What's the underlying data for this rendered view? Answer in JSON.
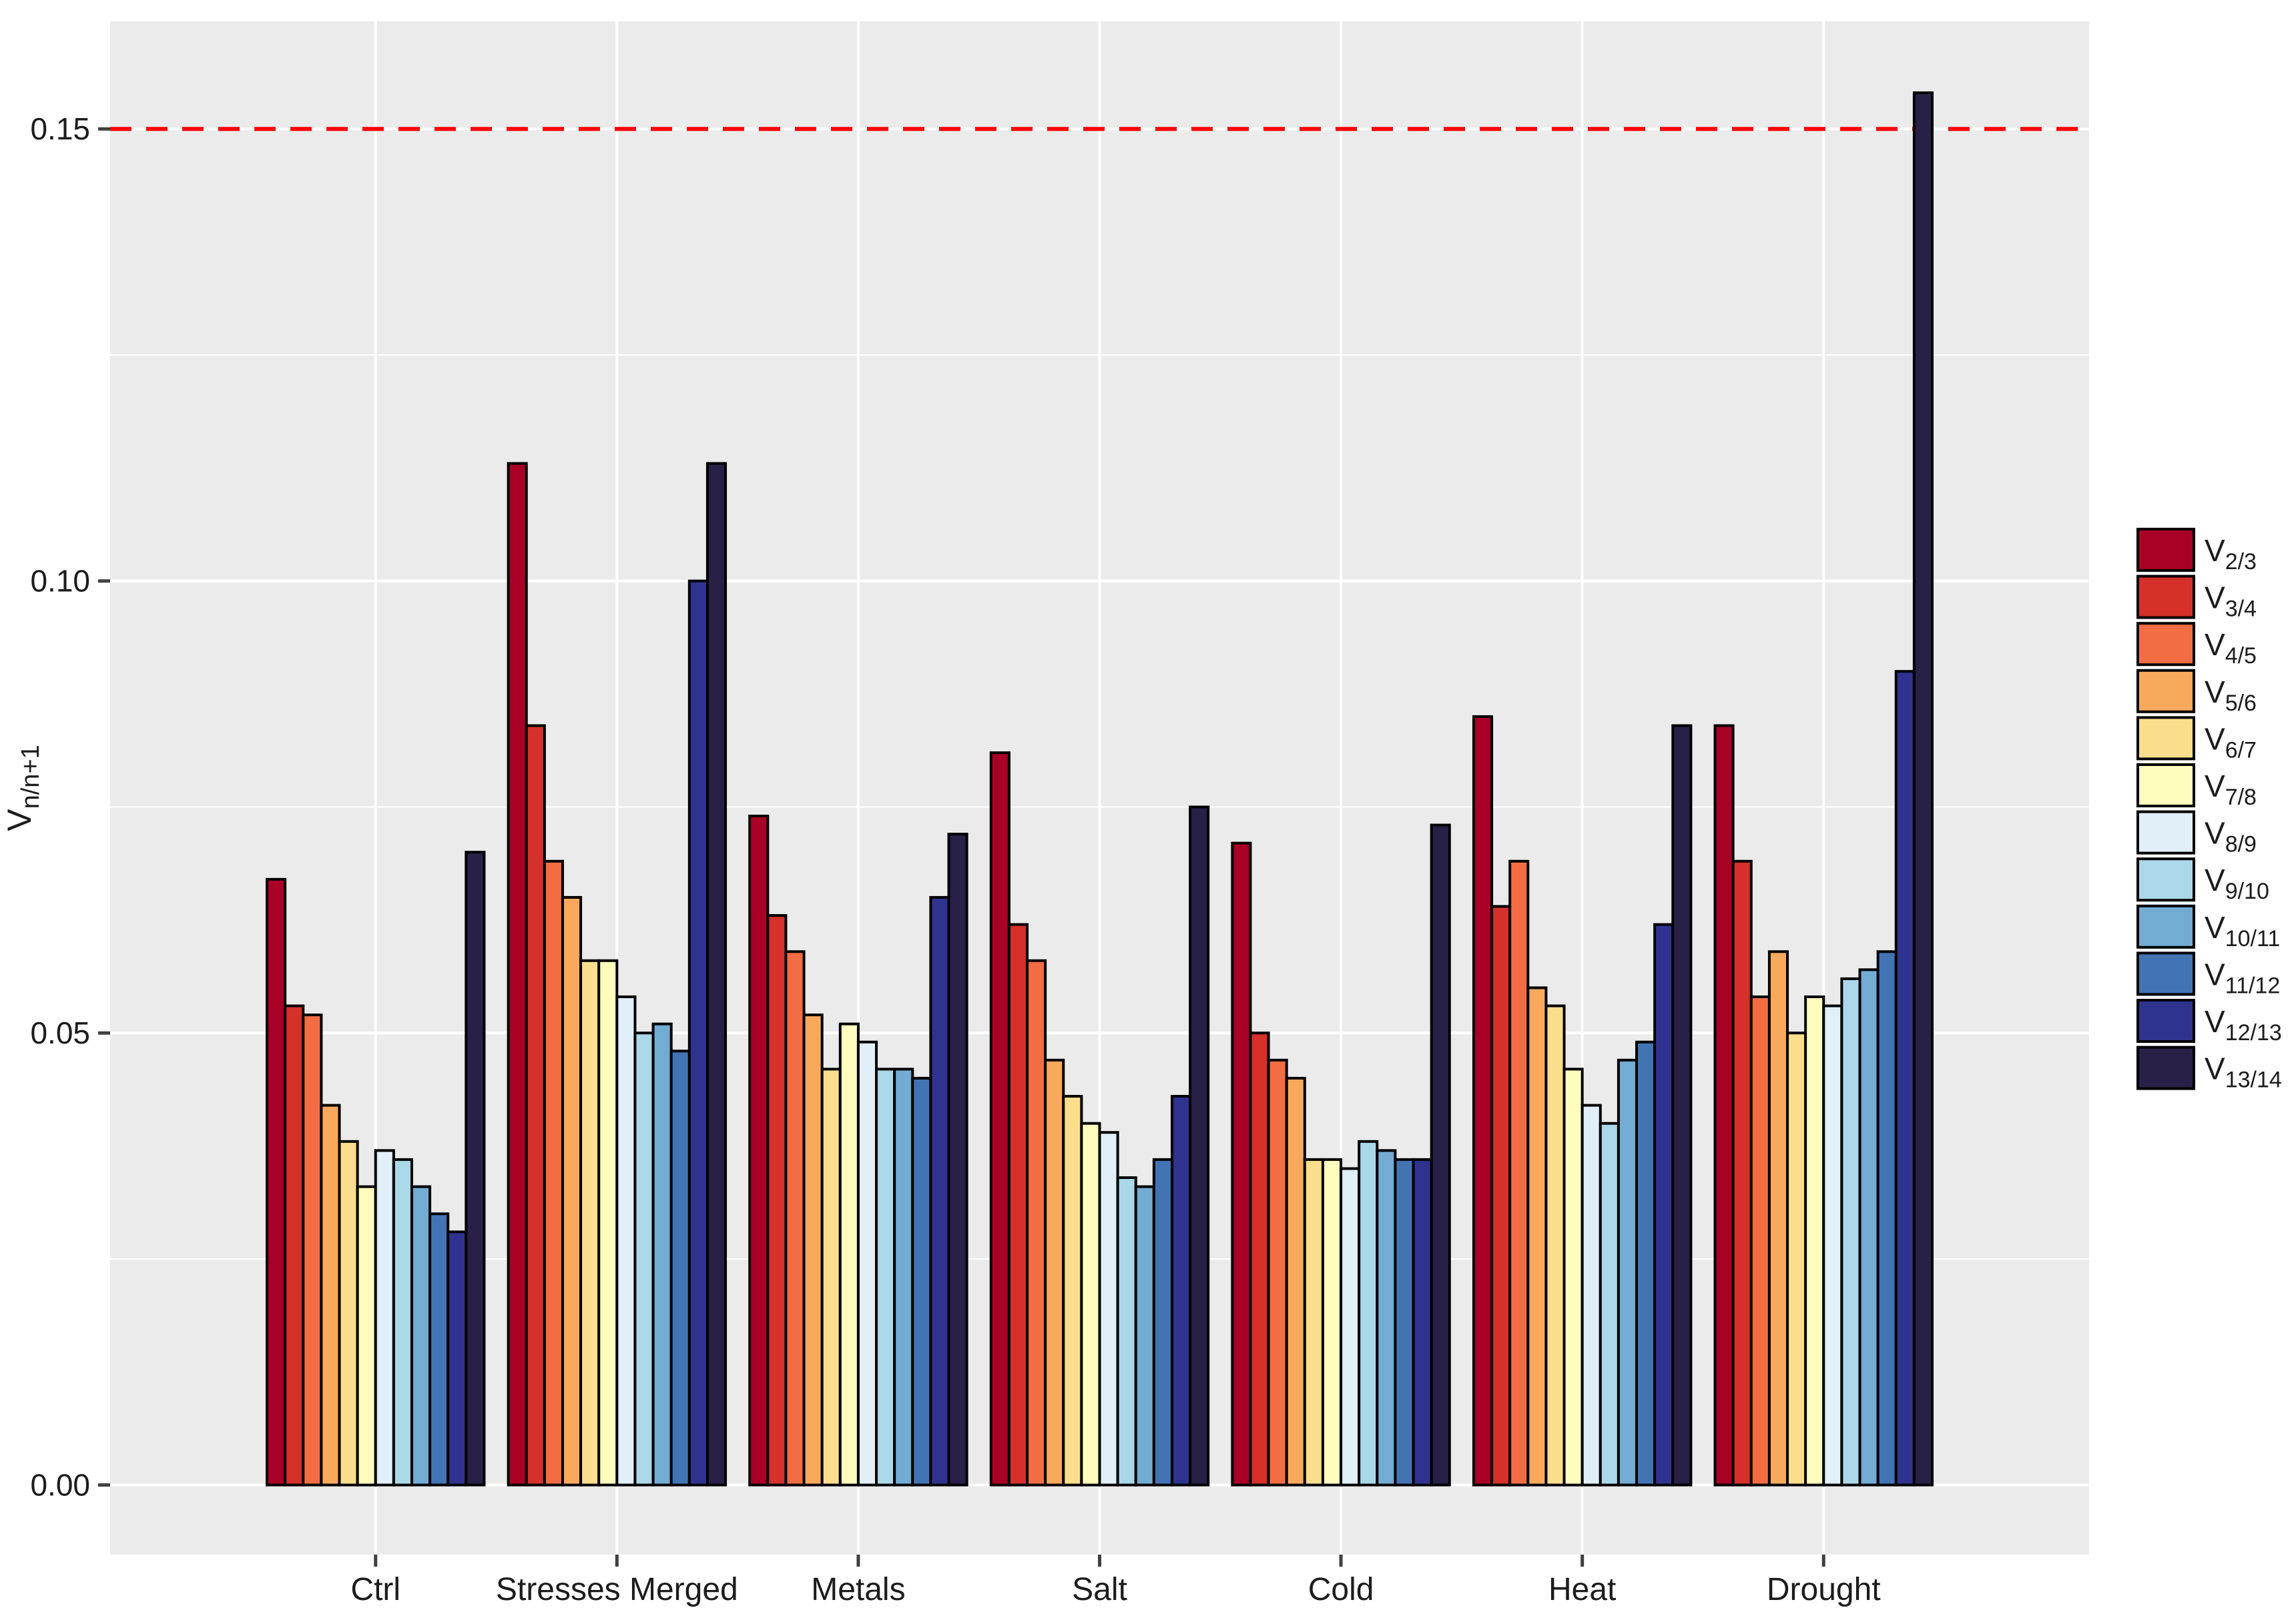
{
  "chart_data": {
    "type": "bar",
    "title": "",
    "xlabel": "",
    "ylabel": {
      "base": "V",
      "sub": "n/n+1"
    },
    "categories": [
      "Ctrl",
      "Stresses Merged",
      "Metals",
      "Salt",
      "Cold",
      "Heat",
      "Drought"
    ],
    "series": [
      {
        "base": "V",
        "sub": "2/3",
        "color": "#A90026",
        "values": [
          0.067,
          0.113,
          0.074,
          0.081,
          0.071,
          0.085,
          0.084
        ]
      },
      {
        "base": "V",
        "sub": "3/4",
        "color": "#D5302A",
        "values": [
          0.053,
          0.084,
          0.063,
          0.062,
          0.05,
          0.064,
          0.069
        ]
      },
      {
        "base": "V",
        "sub": "4/5",
        "color": "#F26D43",
        "values": [
          0.052,
          0.069,
          0.059,
          0.058,
          0.047,
          0.069,
          0.054
        ]
      },
      {
        "base": "V",
        "sub": "5/6",
        "color": "#F8A95C",
        "values": [
          0.042,
          0.065,
          0.052,
          0.047,
          0.045,
          0.055,
          0.059
        ]
      },
      {
        "base": "V",
        "sub": "6/7",
        "color": "#FBDE8B",
        "values": [
          0.038,
          0.058,
          0.046,
          0.043,
          0.036,
          0.053,
          0.05
        ]
      },
      {
        "base": "V",
        "sub": "7/8",
        "color": "#FEFDBE",
        "values": [
          0.033,
          0.058,
          0.051,
          0.04,
          0.036,
          0.046,
          0.054
        ]
      },
      {
        "base": "V",
        "sub": "8/9",
        "color": "#E1EFF8",
        "values": [
          0.037,
          0.054,
          0.049,
          0.039,
          0.035,
          0.042,
          0.053
        ]
      },
      {
        "base": "V",
        "sub": "9/10",
        "color": "#ABD8E8",
        "values": [
          0.036,
          0.05,
          0.046,
          0.034,
          0.038,
          0.04,
          0.056
        ]
      },
      {
        "base": "V",
        "sub": "10/11",
        "color": "#73ACD3",
        "values": [
          0.033,
          0.051,
          0.046,
          0.033,
          0.037,
          0.047,
          0.057
        ]
      },
      {
        "base": "V",
        "sub": "11/12",
        "color": "#4274B4",
        "values": [
          0.03,
          0.048,
          0.045,
          0.036,
          0.036,
          0.049,
          0.059
        ]
      },
      {
        "base": "V",
        "sub": "12/13",
        "color": "#2F338F",
        "values": [
          0.028,
          0.1,
          0.065,
          0.043,
          0.036,
          0.062,
          0.09
        ]
      },
      {
        "base": "V",
        "sub": "13/14",
        "color": "#282047",
        "values": [
          0.07,
          0.113,
          0.072,
          0.075,
          0.073,
          0.084,
          0.154
        ]
      }
    ],
    "y_ticks": [
      {
        "v": 0.0,
        "label": "0.00"
      },
      {
        "v": 0.05,
        "label": "0.05"
      },
      {
        "v": 0.1,
        "label": "0.10"
      },
      {
        "v": 0.15,
        "label": "0.15"
      }
    ],
    "y_minor": [
      0.025,
      0.075,
      0.125
    ],
    "ylim": [
      -0.0077,
      0.1619
    ],
    "hline": {
      "value": 0.15,
      "color": "#FF0000",
      "style": "dashed"
    },
    "legend_position": "right",
    "grid": true
  },
  "colors": {
    "panel_bg": "#EBEBEB",
    "grid": "#FFFFFF",
    "bar_outline": "#000000",
    "axis_text": "#1C1C1C",
    "tick_mark": "#404040",
    "page_bg": "#FFFFFF"
  }
}
